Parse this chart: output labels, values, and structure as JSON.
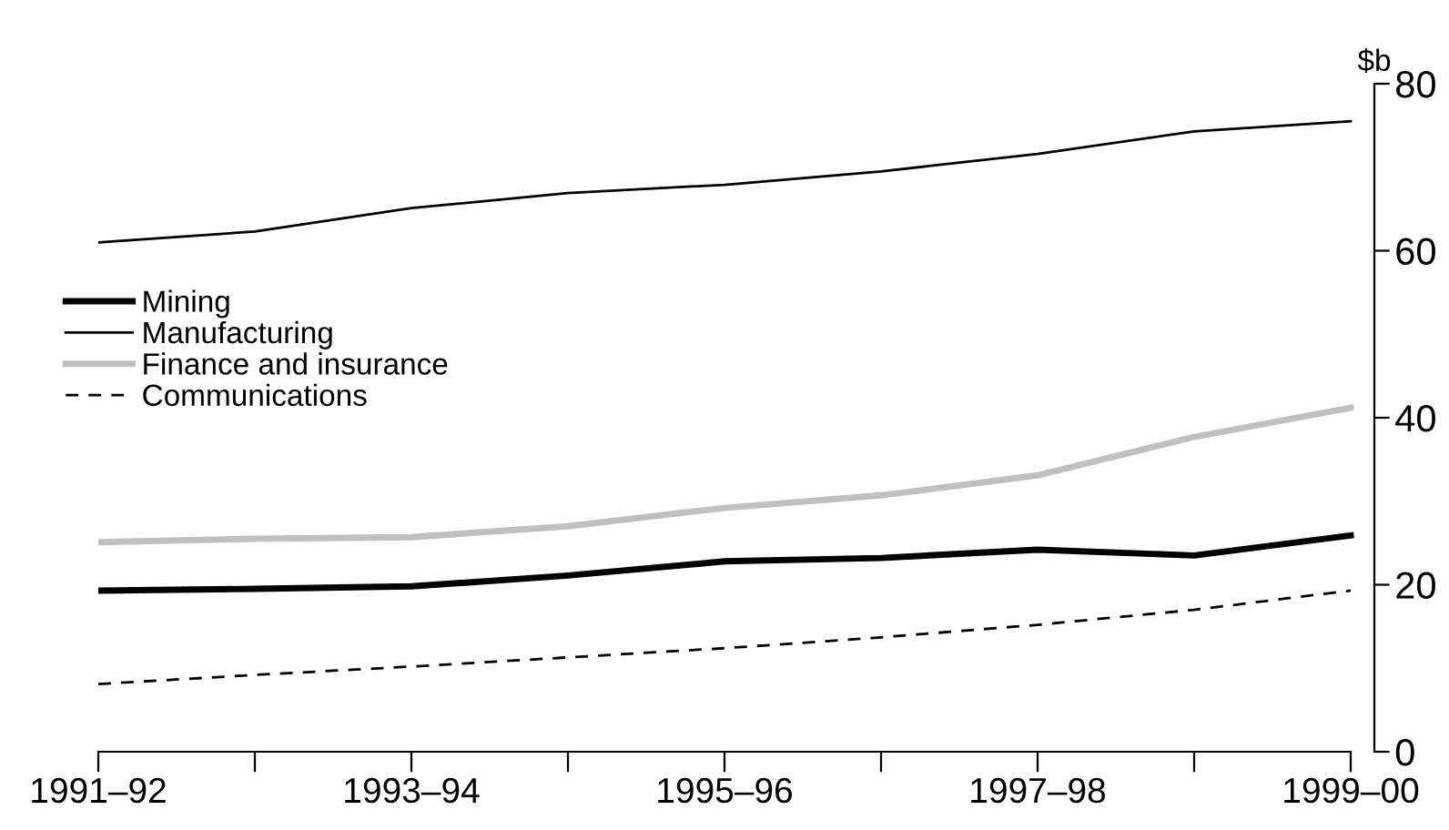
{
  "chart_data": {
    "type": "line",
    "ylabel": "$b",
    "categories": [
      "1991–92",
      null,
      "1993–94",
      null,
      "1995–96",
      null,
      "1997–98",
      null,
      "1999–00"
    ],
    "series": [
      {
        "name": "Mining",
        "color": "#000000",
        "line_style": "solid",
        "values": [
          19.3,
          19.5,
          19.8,
          21.1,
          22.8,
          23.2,
          24.2,
          23.5,
          25.9
        ]
      },
      {
        "name": "Manufacturing",
        "color": "#000000",
        "line_style": "solid",
        "values": [
          61.0,
          62.3,
          65.1,
          66.9,
          67.9,
          69.5,
          71.6,
          74.3,
          75.5
        ]
      },
      {
        "name": "Finance and insurance",
        "color": "#c0c0c0",
        "line_style": "solid",
        "values": [
          25.1,
          25.5,
          25.7,
          27.0,
          29.2,
          30.7,
          33.1,
          37.7,
          41.2
        ]
      },
      {
        "name": "Communications",
        "color": "#000000",
        "line_style": "dashed",
        "values": [
          8.1,
          9.2,
          10.2,
          11.3,
          12.4,
          13.7,
          15.2,
          17.0,
          19.3
        ]
      }
    ],
    "ylim": [
      0,
      80
    ],
    "yticks": [
      0,
      20,
      40,
      60,
      80
    ],
    "grid": false,
    "legend": "left"
  }
}
